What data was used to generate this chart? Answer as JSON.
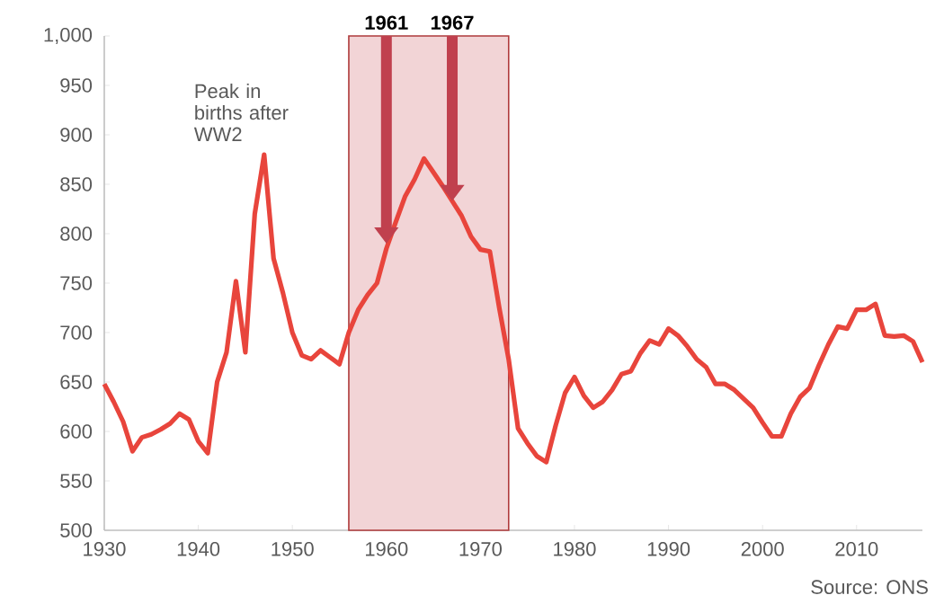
{
  "chart_data": {
    "type": "line",
    "x": [
      1930,
      1931,
      1932,
      1933,
      1934,
      1935,
      1936,
      1937,
      1938,
      1939,
      1940,
      1941,
      1942,
      1943,
      1944,
      1945,
      1946,
      1947,
      1948,
      1949,
      1950,
      1951,
      1952,
      1953,
      1954,
      1955,
      1956,
      1957,
      1958,
      1959,
      1960,
      1961,
      1962,
      1963,
      1964,
      1965,
      1966,
      1967,
      1968,
      1969,
      1970,
      1971,
      1972,
      1973,
      1974,
      1975,
      1976,
      1977,
      1978,
      1979,
      1980,
      1981,
      1982,
      1983,
      1984,
      1985,
      1986,
      1987,
      1988,
      1989,
      1990,
      1991,
      1992,
      1993,
      1994,
      1995,
      1996,
      1997,
      1998,
      1999,
      2000,
      2001,
      2002,
      2003,
      2004,
      2005,
      2006,
      2007,
      2008,
      2009,
      2010,
      2011,
      2012,
      2013,
      2014,
      2015,
      2016,
      2017
    ],
    "series": [
      {
        "color": "#e8453c",
        "values": [
          648,
          630,
          610,
          580,
          594,
          597,
          602,
          608,
          618,
          612,
          590,
          578,
          650,
          680,
          752,
          680,
          820,
          880,
          775,
          740,
          700,
          677,
          673,
          682,
          675,
          668,
          700,
          723,
          738,
          750,
          785,
          812,
          838,
          855,
          876,
          862,
          848,
          833,
          818,
          797,
          784,
          782,
          725,
          673,
          603,
          588,
          575,
          569,
          606,
          639,
          655,
          636,
          624,
          630,
          642,
          658,
          661,
          679,
          692,
          688,
          704,
          697,
          686,
          673,
          665,
          648,
          648,
          642,
          633,
          624,
          609,
          595,
          595,
          618,
          635,
          644,
          667,
          688,
          706,
          704,
          723,
          723,
          729,
          697,
          696,
          697,
          691,
          670
        ]
      }
    ],
    "xlim": [
      1930,
      2017
    ],
    "xticks": [
      1930,
      1940,
      1950,
      1960,
      1970,
      1980,
      1990,
      2000,
      2010
    ],
    "ylim": [
      500,
      1000
    ],
    "yticks": [
      500,
      550,
      600,
      650,
      700,
      750,
      800,
      850,
      900,
      950,
      {
        "value": 1000,
        "label": "1,000"
      }
    ],
    "bands": [
      {
        "axis": "x",
        "from": 1956,
        "to": 1973,
        "color": "#f2d4d6"
      }
    ],
    "annotations": [
      {
        "text": "Peak in births after WW2",
        "x": 1947,
        "y": 880
      },
      {
        "text": "1961",
        "x": 1960,
        "y": 790
      },
      {
        "text": "1967",
        "x": 1967,
        "y": 833
      },
      "Source: ONS"
    ]
  }
}
